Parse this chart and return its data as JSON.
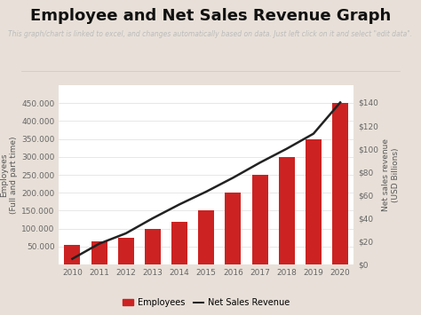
{
  "title": "Employee and Net Sales Revenue Graph",
  "subtitle": "This graph/chart is linked to excel, and changes automatically based on data. Just left click on it and select \"edit data\".",
  "years": [
    2010,
    2011,
    2012,
    2013,
    2014,
    2015,
    2016,
    2017,
    2018,
    2019,
    2020
  ],
  "employees": [
    56000,
    65000,
    75000,
    100000,
    120000,
    150000,
    200000,
    250000,
    300000,
    350000,
    450000
  ],
  "net_sales": [
    5,
    18,
    27,
    40,
    52,
    63,
    75,
    88,
    100,
    113,
    140
  ],
  "bar_color": "#cc2222",
  "line_color": "#222222",
  "ylabel_left": "Employees\n(Full and part time)",
  "ylabel_right": "Net sales revenue\n(USD Billions)",
  "ylim_left": [
    0,
    500000
  ],
  "ylim_right": [
    0,
    155
  ],
  "yticks_left": [
    50000,
    100000,
    150000,
    200000,
    250000,
    300000,
    350000,
    400000,
    450000
  ],
  "ytick_labels_left": [
    "50.000",
    "100.000",
    "150.000",
    "200.000",
    "250.000",
    "300.000",
    "350.000",
    "400.000",
    "450.000"
  ],
  "yticks_right": [
    0,
    20,
    40,
    60,
    80,
    100,
    120,
    140
  ],
  "ytick_labels_right": [
    "$0",
    "$20",
    "$40",
    "$60",
    "$80",
    "$100",
    "$120",
    "$140"
  ],
  "chart_bg": "#ffffff",
  "header_bg": "#ffffff",
  "fig_bg": "#e8e0d8",
  "legend_bar_label": "Employees",
  "legend_line_label": "Net Sales Revenue",
  "title_fontsize": 13,
  "subtitle_fontsize": 5.5,
  "axis_label_fontsize": 6.5,
  "tick_fontsize": 6.5
}
